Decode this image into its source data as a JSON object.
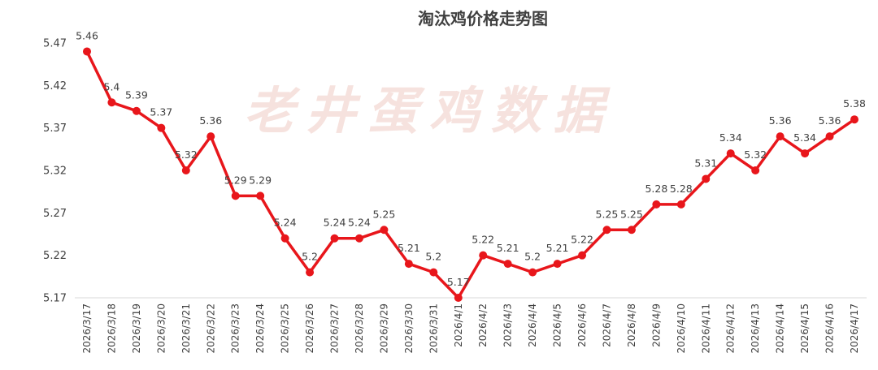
{
  "chart_data": {
    "type": "line",
    "title": "淘汰鸡价格走势图",
    "watermark": "老井蛋鸡数据",
    "xlabel": "",
    "ylabel": "",
    "categories": [
      "2026/3/17",
      "2026/3/18",
      "2026/3/19",
      "2026/3/20",
      "2026/3/21",
      "2026/3/22",
      "2026/3/23",
      "2026/3/24",
      "2026/3/25",
      "2026/3/26",
      "2026/3/27",
      "2026/3/28",
      "2026/3/29",
      "2026/3/30",
      "2026/3/31",
      "2026/4/1",
      "2026/4/2",
      "2026/4/3",
      "2026/4/4",
      "2026/4/5",
      "2026/4/6",
      "2026/4/7",
      "2026/4/8",
      "2026/4/9",
      "2026/4/10",
      "2026/4/11",
      "2026/4/12",
      "2026/4/13",
      "2026/4/14",
      "2026/4/15",
      "2026/4/16",
      "2026/4/17"
    ],
    "series": [
      {
        "values": [
          5.46,
          5.4,
          5.39,
          5.37,
          5.32,
          5.36,
          5.29,
          5.29,
          5.24,
          5.2,
          5.24,
          5.24,
          5.25,
          5.21,
          5.2,
          5.17,
          5.22,
          5.21,
          5.2,
          5.21,
          5.22,
          5.25,
          5.25,
          5.28,
          5.28,
          5.31,
          5.34,
          5.32,
          5.36,
          5.34,
          5.36,
          5.38
        ],
        "labels": [
          "5.46",
          "5.4",
          "5.39",
          "5.37",
          "5.32",
          "5.36",
          "5.29",
          "5.29",
          "5.24",
          "5.2",
          "5.24",
          "5.24",
          "5.25",
          "5.21",
          "5.2",
          "5.17",
          "5.22",
          "5.21",
          "5.2",
          "5.21",
          "5.22",
          "5.25",
          "5.25",
          "5.28",
          "5.28",
          "5.31",
          "5.34",
          "5.32",
          "5.36",
          "5.34",
          "5.36",
          "5.38"
        ]
      }
    ],
    "yticks": [
      "5.17",
      "5.22",
      "5.27",
      "5.32",
      "5.37",
      "5.42",
      "5.47"
    ],
    "ylim": [
      5.17,
      5.47
    ],
    "grid": false,
    "legend": "none",
    "line_color": "#e8161b"
  }
}
